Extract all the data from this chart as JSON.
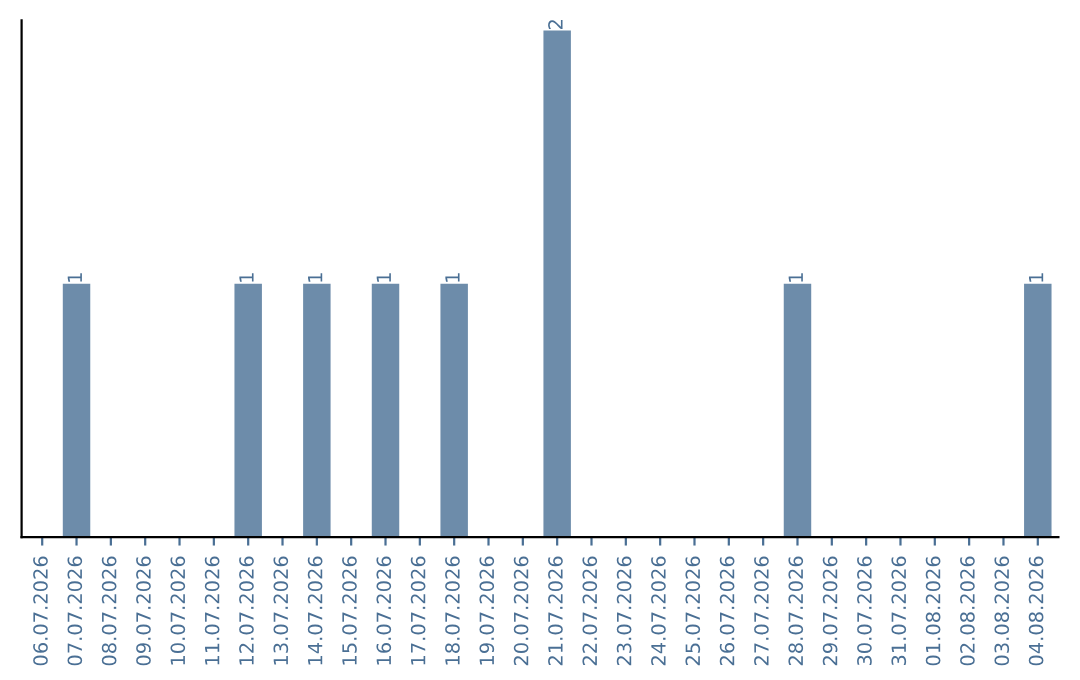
{
  "chart_data": {
    "type": "bar",
    "categories": [
      "06.07.2026",
      "07.07.2026",
      "08.07.2026",
      "09.07.2026",
      "10.07.2026",
      "11.07.2026",
      "12.07.2026",
      "13.07.2026",
      "14.07.2026",
      "15.07.2026",
      "16.07.2026",
      "17.07.2026",
      "18.07.2026",
      "19.07.2026",
      "20.07.2026",
      "21.07.2026",
      "22.07.2026",
      "23.07.2026",
      "24.07.2026",
      "25.07.2026",
      "26.07.2026",
      "27.07.2026",
      "28.07.2026",
      "29.07.2026",
      "30.07.2026",
      "31.07.2026",
      "01.08.2026",
      "02.08.2026",
      "03.08.2026",
      "04.08.2026"
    ],
    "values": [
      0,
      1,
      0,
      0,
      0,
      0,
      1,
      0,
      1,
      0,
      1,
      0,
      1,
      0,
      0,
      2,
      0,
      0,
      0,
      0,
      0,
      0,
      1,
      0,
      0,
      0,
      0,
      0,
      0,
      1
    ],
    "value_labels": [
      null,
      "1",
      null,
      null,
      null,
      null,
      "1",
      null,
      "1",
      null,
      "1",
      null,
      "1",
      null,
      null,
      "2",
      null,
      null,
      null,
      null,
      null,
      null,
      "1",
      null,
      null,
      null,
      null,
      null,
      null,
      "1"
    ],
    "color": "#6d8caa",
    "grid": false,
    "legend": false
  }
}
